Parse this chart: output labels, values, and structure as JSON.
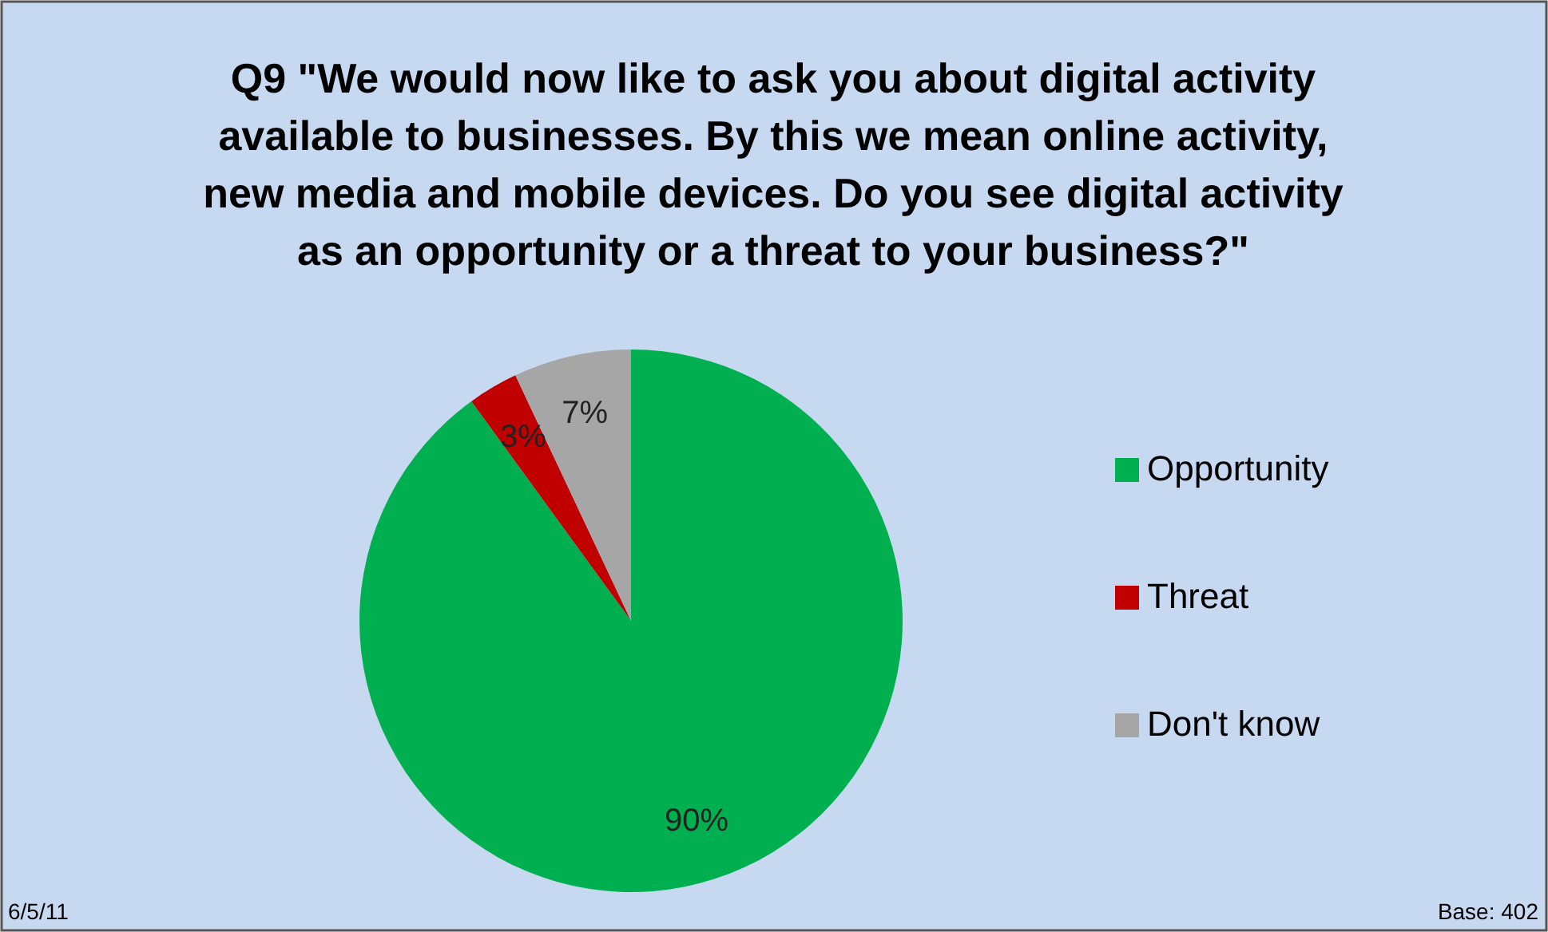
{
  "chart_data": {
    "type": "pie",
    "title": "Q9 \"We would now like to ask you about digital activity available to businesses. By this we mean online activity, new media and mobile devices. Do you see digital activity as an opportunity or a threat to your business?\"",
    "categories": [
      "Opportunity",
      "Threat",
      "Don't know"
    ],
    "values": [
      90,
      3,
      7
    ],
    "value_labels": [
      "90%",
      "3%",
      "7%"
    ],
    "colors": [
      "#00b050",
      "#c00000",
      "#a6a6a6"
    ],
    "legend": "right",
    "annotations": [
      "6/5/11",
      "Base: 402"
    ]
  }
}
